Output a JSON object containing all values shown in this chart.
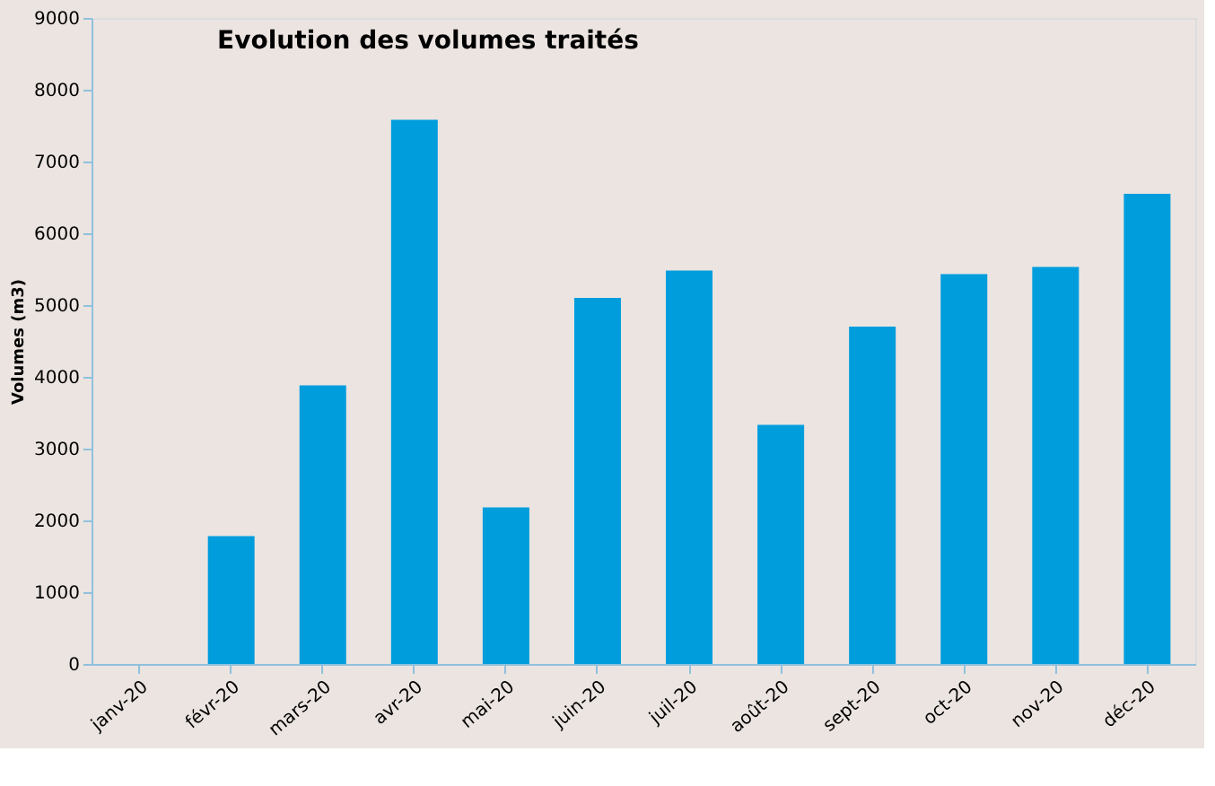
{
  "chart_data": {
    "type": "bar",
    "title": "Evolution des volumes traités",
    "ylabel": "Volumes (m3)",
    "categories": [
      "janv-20",
      "févr-20",
      "mars-20",
      "avr-20",
      "mai-20",
      "juin-20",
      "juil-20",
      "août-20",
      "sept-20",
      "oct-20",
      "nov-20",
      "déc-20"
    ],
    "values": [
      0,
      1780,
      3880,
      7580,
      2180,
      5100,
      5480,
      3330,
      4700,
      5430,
      5530,
      6550
    ],
    "color": "#009ddd",
    "ylim": [
      0,
      9000
    ],
    "yticks": [
      0,
      1000,
      2000,
      3000,
      4000,
      5000,
      6000,
      7000,
      8000,
      9000
    ],
    "grid": false
  }
}
